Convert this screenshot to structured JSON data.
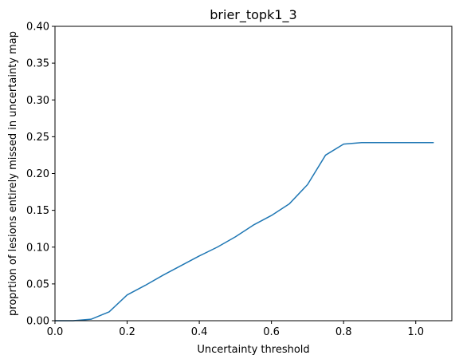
{
  "chart_data": {
    "type": "line",
    "title": "brier_topk1_3",
    "xlabel": "Uncertainty threshold",
    "ylabel": "proprtion of lesions entirely missed in uncertainty map",
    "xlim": [
      0.0,
      1.1
    ],
    "ylim": [
      0.0,
      0.4
    ],
    "xticks": [
      "0.0",
      "0.2",
      "0.4",
      "0.6",
      "0.8",
      "1.0"
    ],
    "yticks": [
      "0.00",
      "0.05",
      "0.10",
      "0.15",
      "0.20",
      "0.25",
      "0.30",
      "0.35",
      "0.40"
    ],
    "grid": false,
    "line_color": "#1f77b4",
    "x": [
      0.0,
      0.05,
      0.1,
      0.15,
      0.2,
      0.25,
      0.3,
      0.35,
      0.4,
      0.45,
      0.5,
      0.55,
      0.6,
      0.65,
      0.7,
      0.75,
      0.8,
      0.85,
      0.9,
      0.95,
      1.0,
      1.05
    ],
    "y": [
      0.0,
      0.0,
      0.002,
      0.012,
      0.035,
      0.048,
      0.062,
      0.075,
      0.088,
      0.1,
      0.114,
      0.13,
      0.143,
      0.159,
      0.185,
      0.225,
      0.24,
      0.242,
      0.242,
      0.242,
      0.242,
      0.242
    ]
  }
}
